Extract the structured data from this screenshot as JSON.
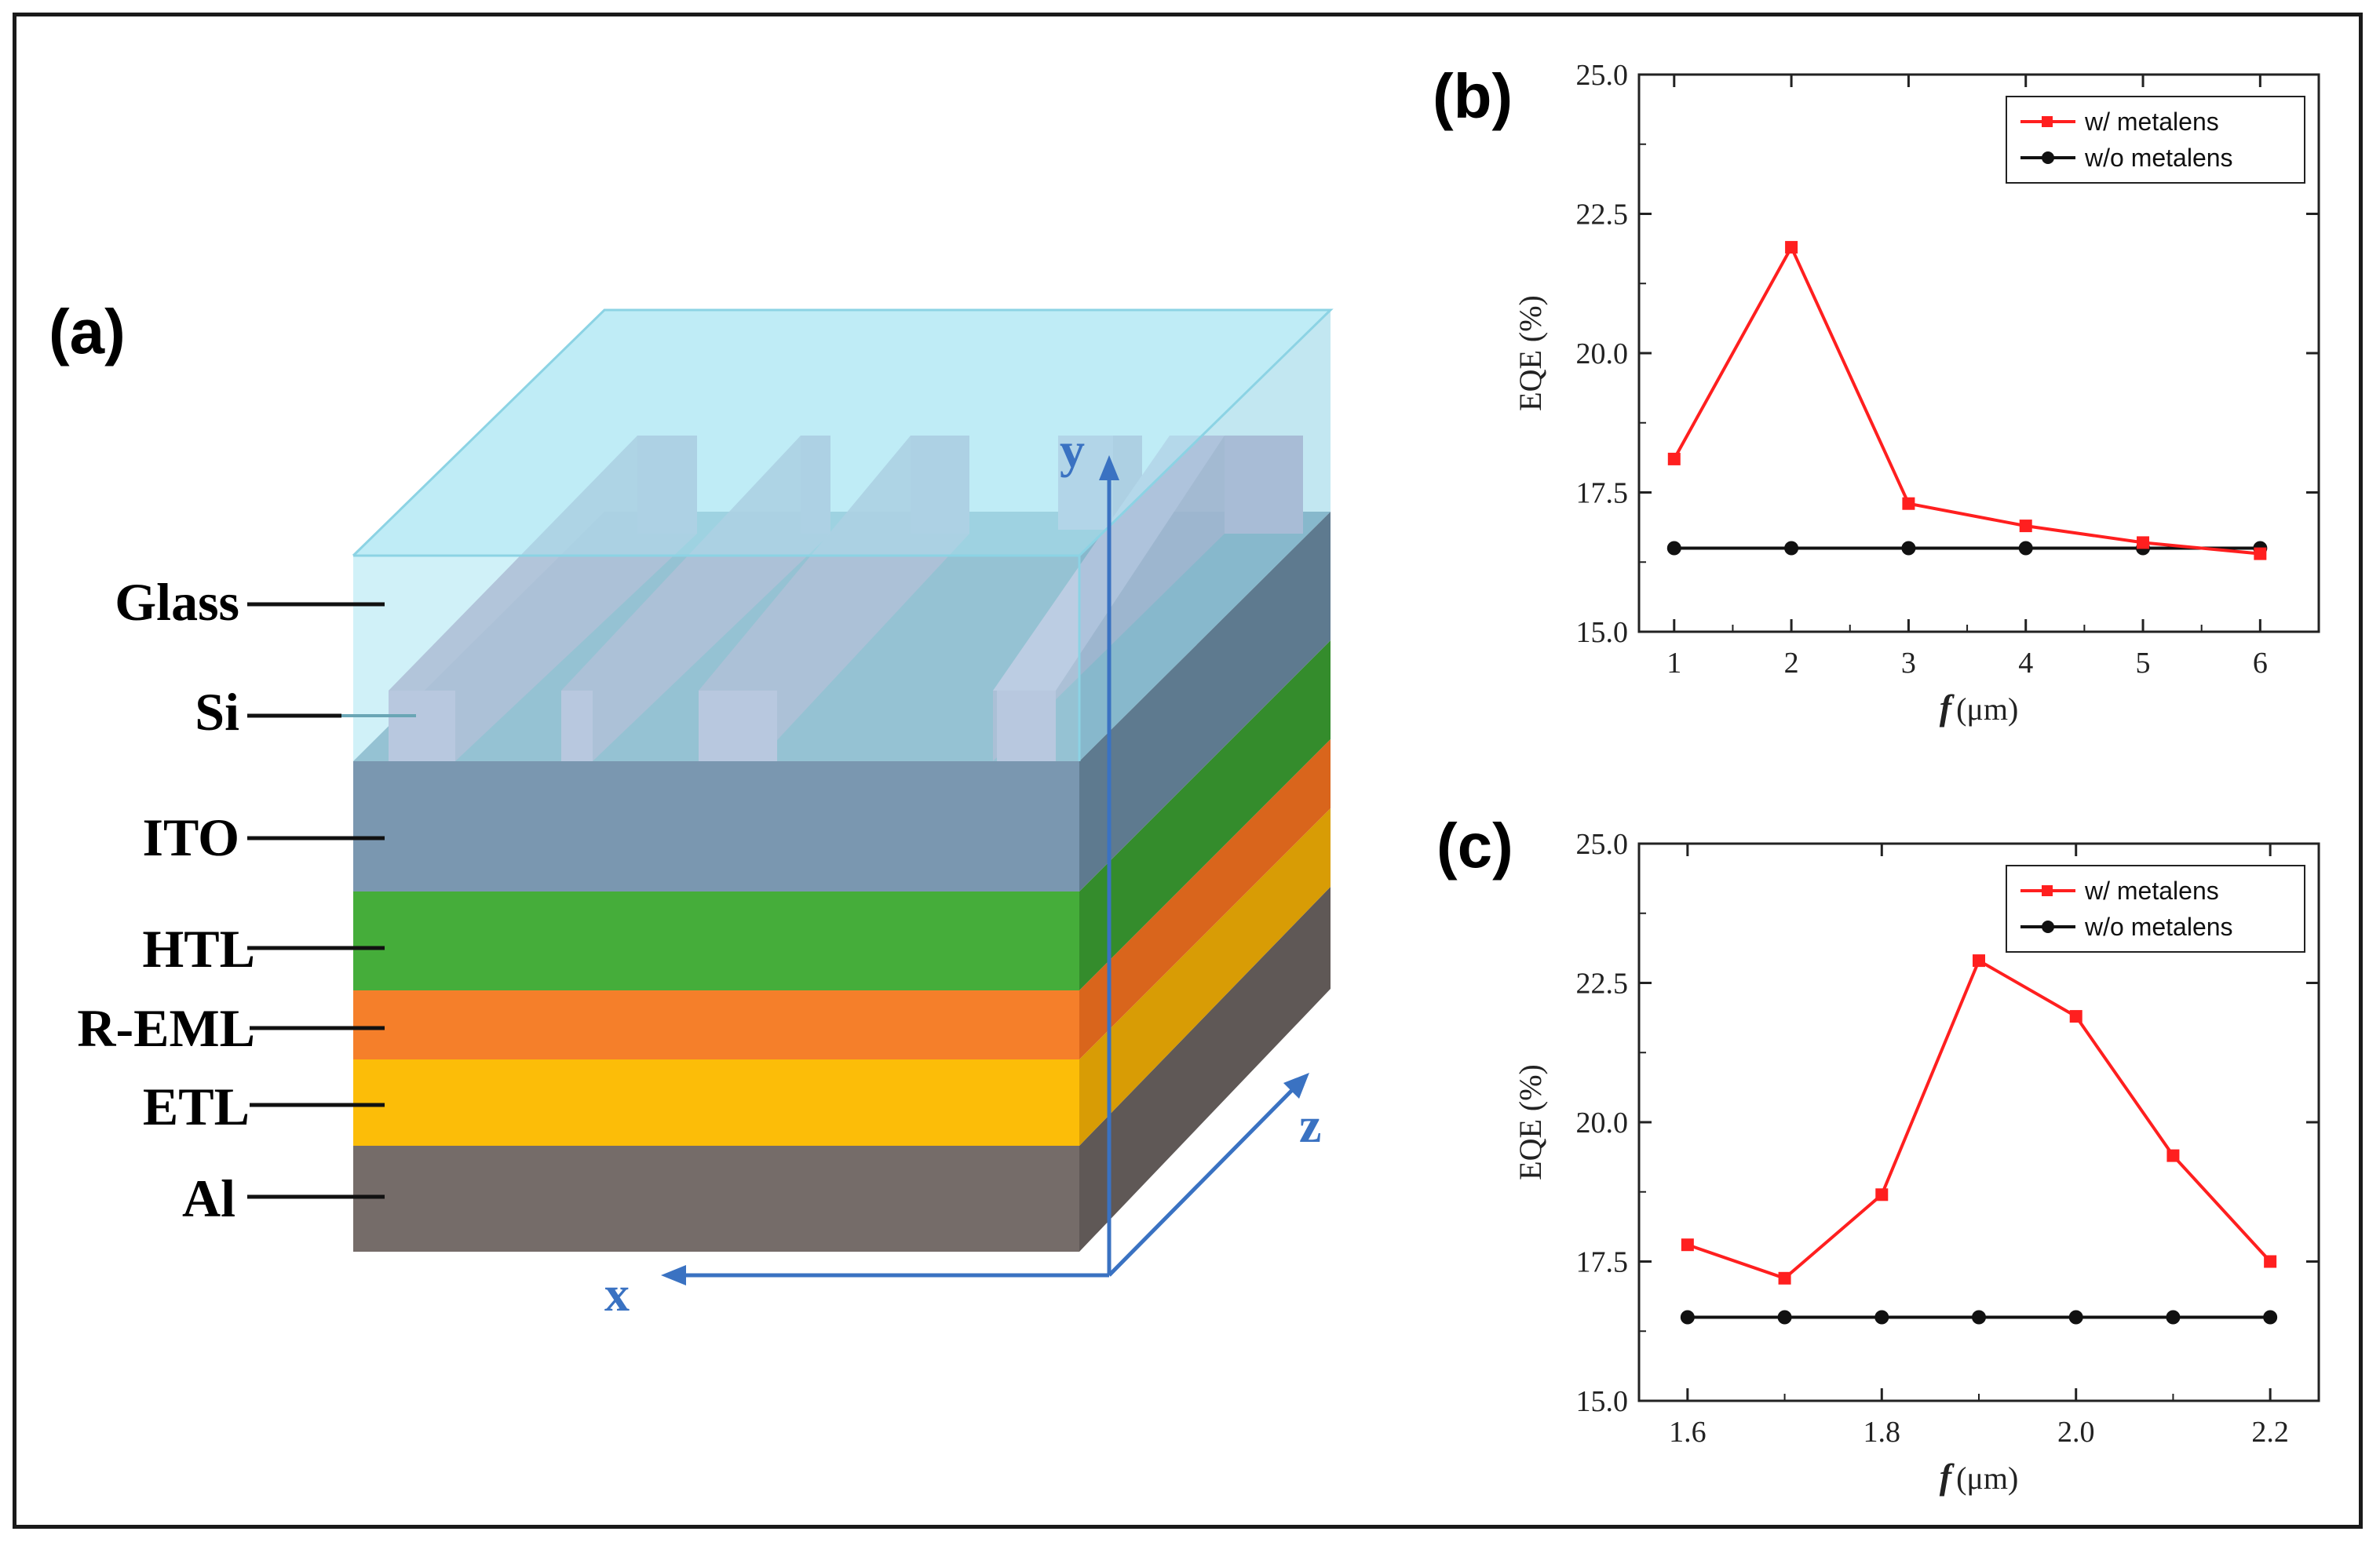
{
  "panel_a": {
    "label": "(a)",
    "layers": [
      "Glass",
      "Si",
      "ITO",
      "HTL",
      "R-EML",
      "ETL",
      "Al"
    ],
    "axes": {
      "x": "x",
      "y": "y",
      "z": "z"
    },
    "colors": {
      "glass": "#a9e6f3",
      "si": "#c8a3c9",
      "ito": "#7a97b0",
      "htl": "#45ad3a",
      "reml": "#f57f2a",
      "etl": "#fcbd08",
      "al": "#756c69",
      "axis": "#3a72c2"
    }
  },
  "chart_data": [
    {
      "panel": "(b)",
      "type": "line",
      "title": "",
      "xlabel_italic": "f",
      "xlabel_unit": "(μm)",
      "ylabel": "EQE (%)",
      "x": [
        1,
        2,
        3,
        4,
        5,
        6
      ],
      "xticks": [
        "1",
        "2",
        "3",
        "4",
        "5",
        "6"
      ],
      "xlim": [
        0.7,
        6.5
      ],
      "ylim": [
        15.0,
        25.0
      ],
      "yticks": [
        "15.0",
        "17.5",
        "20.0",
        "22.5",
        "25.0"
      ],
      "legend_position": "top-right",
      "series": [
        {
          "name": "w/ metalens",
          "color": "#ff1f1f",
          "marker": "square",
          "values": [
            18.1,
            21.9,
            17.3,
            16.9,
            16.6,
            16.4
          ]
        },
        {
          "name": "w/o metalens",
          "color": "#111111",
          "marker": "circle",
          "values": [
            16.5,
            16.5,
            16.5,
            16.5,
            16.5,
            16.5
          ]
        }
      ]
    },
    {
      "panel": "(c)",
      "type": "line",
      "title": "",
      "xlabel_italic": "f",
      "xlabel_unit": "(μm)",
      "ylabel": "EQE (%)",
      "x": [
        1.6,
        1.7,
        1.8,
        1.9,
        2.0,
        2.1,
        2.2
      ],
      "xticks": [
        "1.6",
        "1.8",
        "2.0",
        "2.2"
      ],
      "xlim": [
        1.55,
        2.25
      ],
      "ylim": [
        15.0,
        25.0
      ],
      "yticks": [
        "15.0",
        "17.5",
        "20.0",
        "22.5",
        "25.0"
      ],
      "legend_position": "top-right",
      "series": [
        {
          "name": "w/ metalens",
          "color": "#ff1f1f",
          "marker": "square",
          "values": [
            17.8,
            17.2,
            18.7,
            22.9,
            21.9,
            19.4,
            17.5
          ]
        },
        {
          "name": "w/o metalens",
          "color": "#111111",
          "marker": "circle",
          "values": [
            16.5,
            16.5,
            16.5,
            16.5,
            16.5,
            16.5,
            16.5
          ]
        }
      ]
    }
  ]
}
